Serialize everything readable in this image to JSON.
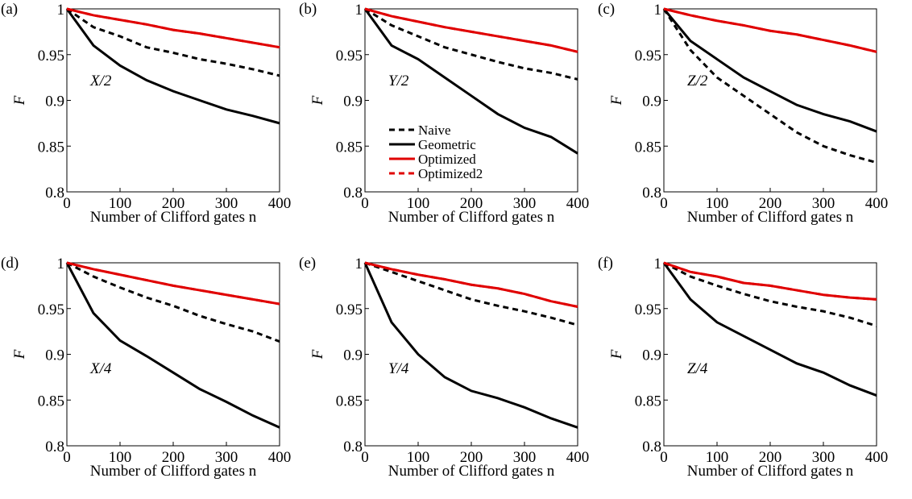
{
  "chart_data": [
    {
      "type": "line",
      "panel": "(a)",
      "annotation": "X/2",
      "xlabel": "Number of Clifford gates n",
      "ylabel": "F",
      "x": [
        0,
        50,
        100,
        150,
        200,
        250,
        300,
        350,
        400
      ],
      "xlim": [
        0,
        400
      ],
      "xticks": [
        0,
        100,
        200,
        300,
        400
      ],
      "ylim": [
        0.8,
        1
      ],
      "yticks": [
        0.8,
        0.85,
        0.9,
        0.95,
        1
      ],
      "series": [
        {
          "name": "Naive",
          "color": "#000000",
          "linestyle": "dashed",
          "values": [
            1,
            0.98,
            0.97,
            0.958,
            0.952,
            0.945,
            0.94,
            0.934,
            0.927
          ]
        },
        {
          "name": "Geometric",
          "color": "#000000",
          "linestyle": "solid",
          "values": [
            1,
            0.96,
            0.938,
            0.922,
            0.91,
            0.9,
            0.89,
            0.883,
            0.875
          ]
        },
        {
          "name": "Optimized",
          "color": "#e00000",
          "linestyle": "solid",
          "values": [
            1,
            0.993,
            0.988,
            0.983,
            0.977,
            0.973,
            0.968,
            0.963,
            0.958
          ]
        },
        {
          "name": "Optimized2",
          "color": "#e00000",
          "linestyle": "dashed",
          "values": [
            1,
            0.993,
            0.988,
            0.983,
            0.977,
            0.973,
            0.968,
            0.963,
            0.958
          ]
        }
      ]
    },
    {
      "type": "line",
      "panel": "(b)",
      "annotation": "Y/2",
      "xlabel": "Number of Clifford gates n",
      "ylabel": "F",
      "legend": "center",
      "x": [
        0,
        50,
        100,
        150,
        200,
        250,
        300,
        350,
        400
      ],
      "xlim": [
        0,
        400
      ],
      "xticks": [
        0,
        100,
        200,
        300,
        400
      ],
      "ylim": [
        0.8,
        1
      ],
      "yticks": [
        0.8,
        0.85,
        0.9,
        0.95,
        1
      ],
      "series": [
        {
          "name": "Naive",
          "color": "#000000",
          "linestyle": "dashed",
          "values": [
            1,
            0.982,
            0.97,
            0.958,
            0.95,
            0.942,
            0.935,
            0.93,
            0.923
          ]
        },
        {
          "name": "Geometric",
          "color": "#000000",
          "linestyle": "solid",
          "values": [
            1,
            0.96,
            0.945,
            0.925,
            0.905,
            0.885,
            0.87,
            0.86,
            0.842
          ]
        },
        {
          "name": "Optimized",
          "color": "#e00000",
          "linestyle": "solid",
          "values": [
            1,
            0.992,
            0.986,
            0.98,
            0.975,
            0.97,
            0.965,
            0.96,
            0.953
          ]
        },
        {
          "name": "Optimized2",
          "color": "#e00000",
          "linestyle": "dashed",
          "values": [
            1,
            0.992,
            0.986,
            0.98,
            0.975,
            0.97,
            0.965,
            0.96,
            0.953
          ]
        }
      ]
    },
    {
      "type": "line",
      "panel": "(c)",
      "annotation": "Z/2",
      "xlabel": "Number of Clifford gates n",
      "ylabel": "F",
      "x": [
        0,
        50,
        100,
        150,
        200,
        250,
        300,
        350,
        400
      ],
      "xlim": [
        0,
        400
      ],
      "xticks": [
        0,
        100,
        200,
        300,
        400
      ],
      "ylim": [
        0.8,
        1
      ],
      "yticks": [
        0.8,
        0.85,
        0.9,
        0.95,
        1
      ],
      "series": [
        {
          "name": "Naive",
          "color": "#000000",
          "linestyle": "dashed",
          "values": [
            1,
            0.955,
            0.925,
            0.905,
            0.885,
            0.865,
            0.85,
            0.84,
            0.832
          ]
        },
        {
          "name": "Geometric",
          "color": "#000000",
          "linestyle": "solid",
          "values": [
            1,
            0.965,
            0.945,
            0.925,
            0.91,
            0.895,
            0.885,
            0.877,
            0.866
          ]
        },
        {
          "name": "Optimized",
          "color": "#e00000",
          "linestyle": "solid",
          "values": [
            1,
            0.993,
            0.987,
            0.982,
            0.976,
            0.972,
            0.966,
            0.96,
            0.953
          ]
        },
        {
          "name": "Optimized2",
          "color": "#e00000",
          "linestyle": "dashed",
          "values": [
            1,
            0.993,
            0.987,
            0.982,
            0.976,
            0.972,
            0.966,
            0.96,
            0.953
          ]
        }
      ]
    },
    {
      "type": "line",
      "panel": "(d)",
      "annotation": "X/4",
      "xlabel": "Number of Clifford gates n",
      "ylabel": "F",
      "x": [
        0,
        50,
        100,
        150,
        200,
        250,
        300,
        350,
        400
      ],
      "xlim": [
        0,
        400
      ],
      "xticks": [
        0,
        100,
        200,
        300,
        400
      ],
      "ylim": [
        0.8,
        1
      ],
      "yticks": [
        0.8,
        0.85,
        0.9,
        0.95,
        1
      ],
      "series": [
        {
          "name": "Naive",
          "color": "#000000",
          "linestyle": "dashed",
          "values": [
            1,
            0.985,
            0.973,
            0.962,
            0.953,
            0.942,
            0.933,
            0.925,
            0.914
          ]
        },
        {
          "name": "Geometric",
          "color": "#000000",
          "linestyle": "solid",
          "values": [
            1,
            0.945,
            0.915,
            0.898,
            0.88,
            0.862,
            0.848,
            0.833,
            0.82
          ]
        },
        {
          "name": "Optimized",
          "color": "#e00000",
          "linestyle": "solid",
          "values": [
            1,
            0.993,
            0.987,
            0.981,
            0.975,
            0.97,
            0.965,
            0.96,
            0.955
          ]
        },
        {
          "name": "Optimized2",
          "color": "#e00000",
          "linestyle": "dashed",
          "values": [
            1,
            0.993,
            0.987,
            0.981,
            0.975,
            0.97,
            0.965,
            0.96,
            0.955
          ]
        }
      ]
    },
    {
      "type": "line",
      "panel": "(e)",
      "annotation": "Y/4",
      "xlabel": "Number of Clifford gates n",
      "ylabel": "F",
      "x": [
        0,
        50,
        100,
        150,
        200,
        250,
        300,
        350,
        400
      ],
      "xlim": [
        0,
        400
      ],
      "xticks": [
        0,
        100,
        200,
        300,
        400
      ],
      "ylim": [
        0.8,
        1
      ],
      "yticks": [
        0.8,
        0.85,
        0.9,
        0.95,
        1
      ],
      "series": [
        {
          "name": "Naive",
          "color": "#000000",
          "linestyle": "dashed",
          "values": [
            1,
            0.99,
            0.98,
            0.97,
            0.96,
            0.953,
            0.947,
            0.94,
            0.932
          ]
        },
        {
          "name": "Geometric",
          "color": "#000000",
          "linestyle": "solid",
          "values": [
            1,
            0.935,
            0.9,
            0.875,
            0.86,
            0.852,
            0.842,
            0.83,
            0.82
          ]
        },
        {
          "name": "Optimized",
          "color": "#e00000",
          "linestyle": "solid",
          "values": [
            1,
            0.993,
            0.987,
            0.982,
            0.976,
            0.972,
            0.966,
            0.958,
            0.952
          ]
        },
        {
          "name": "Optimized2",
          "color": "#e00000",
          "linestyle": "dashed",
          "values": [
            1,
            0.993,
            0.987,
            0.982,
            0.976,
            0.972,
            0.966,
            0.958,
            0.952
          ]
        }
      ]
    },
    {
      "type": "line",
      "panel": "(f)",
      "annotation": "Z/4",
      "xlabel": "Number of Clifford gates n",
      "ylabel": "F",
      "x": [
        0,
        50,
        100,
        150,
        200,
        250,
        300,
        350,
        400
      ],
      "xlim": [
        0,
        400
      ],
      "xticks": [
        0,
        100,
        200,
        300,
        400
      ],
      "ylim": [
        0.8,
        1
      ],
      "yticks": [
        0.8,
        0.85,
        0.9,
        0.95,
        1
      ],
      "series": [
        {
          "name": "Naive",
          "color": "#000000",
          "linestyle": "dashed",
          "values": [
            1,
            0.985,
            0.975,
            0.966,
            0.958,
            0.952,
            0.947,
            0.94,
            0.931
          ]
        },
        {
          "name": "Geometric",
          "color": "#000000",
          "linestyle": "solid",
          "values": [
            1,
            0.96,
            0.935,
            0.92,
            0.905,
            0.89,
            0.88,
            0.866,
            0.855
          ]
        },
        {
          "name": "Optimized",
          "color": "#e00000",
          "linestyle": "solid",
          "values": [
            1,
            0.99,
            0.985,
            0.978,
            0.975,
            0.97,
            0.965,
            0.962,
            0.96
          ]
        },
        {
          "name": "Optimized2",
          "color": "#e00000",
          "linestyle": "dashed",
          "values": [
            1,
            0.99,
            0.985,
            0.978,
            0.975,
            0.97,
            0.965,
            0.962,
            0.96
          ]
        }
      ]
    }
  ]
}
